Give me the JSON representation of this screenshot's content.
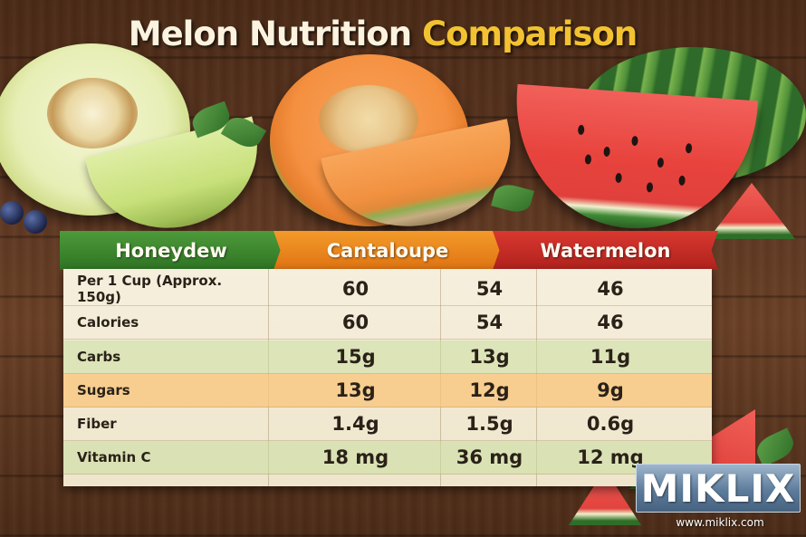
{
  "title": {
    "part1": "Melon Nutrition",
    "part2": "Comparison"
  },
  "colors": {
    "honeydew": "#3c8a2f",
    "cantaloupe": "#ea8420",
    "watermelon": "#c42b25",
    "title_accent": "#f2c231"
  },
  "columns": [
    "Honeydew",
    "Cantaloupe",
    "Watermelon"
  ],
  "rows": [
    {
      "label": "Per 1 Cup (Approx. 150g)",
      "values": [
        "60",
        "54",
        "46"
      ]
    },
    {
      "label": "Calories",
      "values": [
        "60",
        "54",
        "46"
      ]
    },
    {
      "label": "Carbs",
      "values": [
        "15g",
        "13g",
        "11g"
      ]
    },
    {
      "label": "Sugars",
      "values": [
        "13g",
        "12g",
        "9g"
      ]
    },
    {
      "label": "Fiber",
      "values": [
        "1.4g",
        "1.5g",
        "0.6g"
      ]
    },
    {
      "label": "Vitamin C",
      "values": [
        "18 mg",
        "36 mg",
        "12 mg"
      ]
    }
  ],
  "watermark": {
    "logo": "MIKLIX",
    "url": "www.miklix.com"
  },
  "icons": [
    "honeydew-illustration",
    "cantaloupe-illustration",
    "watermelon-illustration",
    "mint-leaf-icon",
    "blueberry-icon"
  ]
}
